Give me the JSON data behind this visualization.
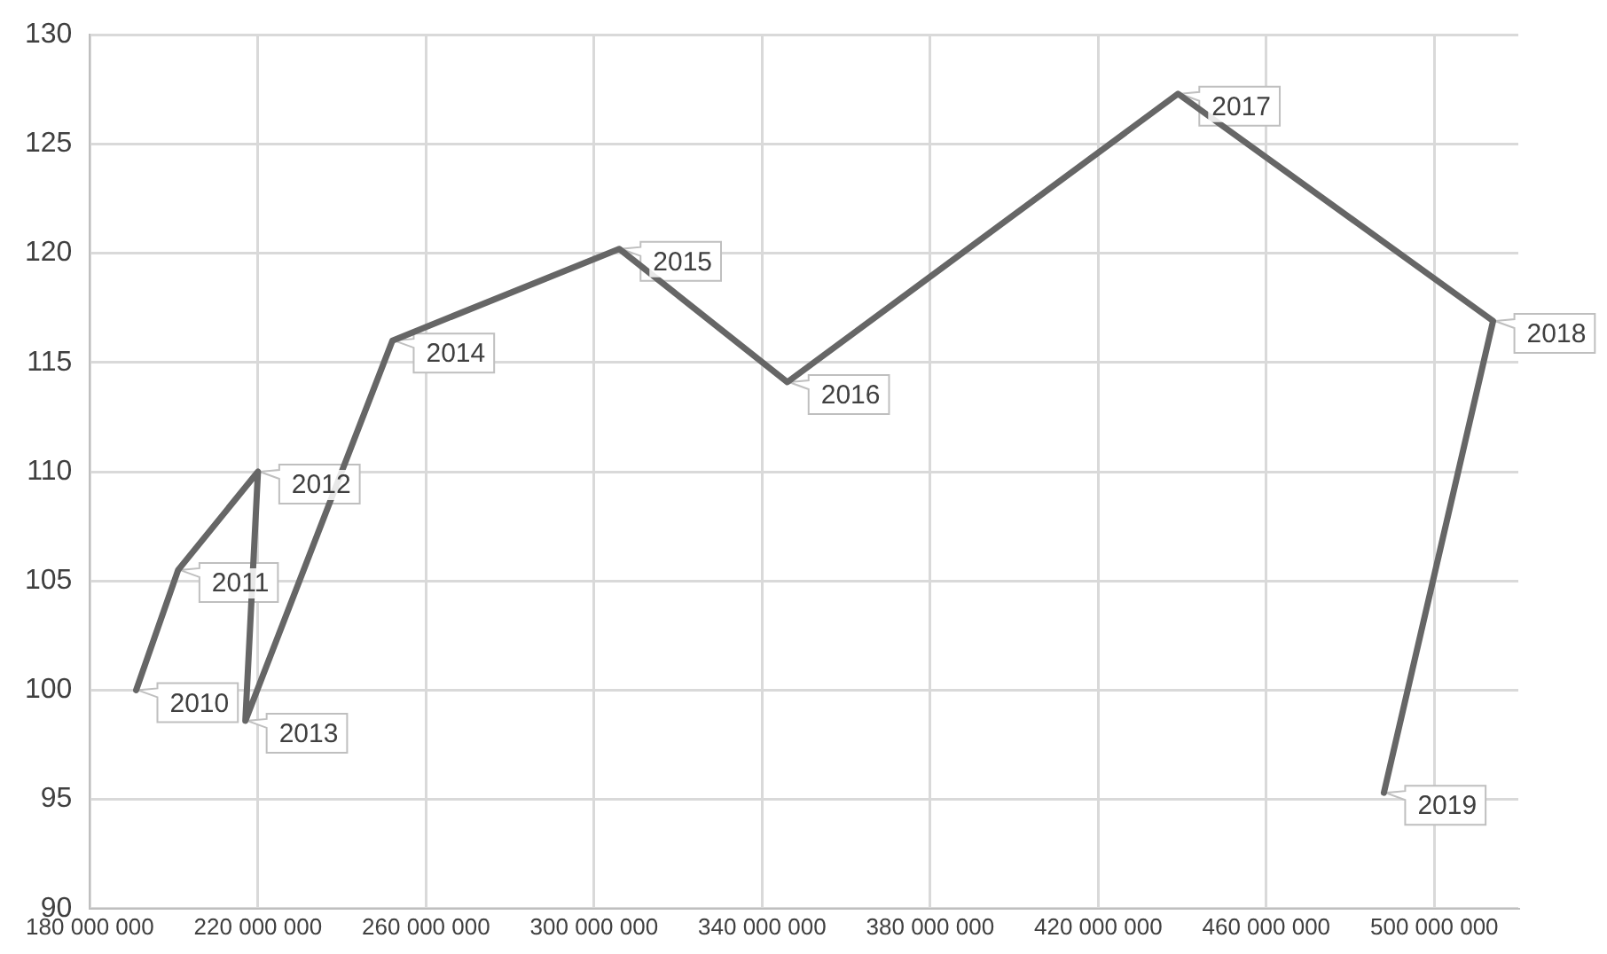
{
  "chart_data": {
    "type": "line",
    "marker": "none",
    "grid": true,
    "legend": false,
    "line_style": "solid",
    "xlim": [
      180000000,
      520000000
    ],
    "xticks": [
      {
        "value": 180000000,
        "label": "180 000 000"
      },
      {
        "value": 220000000,
        "label": "220 000 000"
      },
      {
        "value": 260000000,
        "label": "260 000 000"
      },
      {
        "value": 300000000,
        "label": "300 000 000"
      },
      {
        "value": 340000000,
        "label": "340 000 000"
      },
      {
        "value": 380000000,
        "label": "380 000 000"
      },
      {
        "value": 420000000,
        "label": "420 000 000"
      },
      {
        "value": 460000000,
        "label": "460 000 000"
      },
      {
        "value": 500000000,
        "label": "500 000 000"
      }
    ],
    "ylim": [
      90,
      130
    ],
    "yticks": [
      90,
      95,
      100,
      105,
      110,
      115,
      120,
      125,
      130
    ],
    "series": [
      {
        "color": "#666666",
        "x": [
          191000000,
          201000000,
          220000000,
          217000000,
          252000000,
          306000000,
          346000000,
          439000000,
          514000000,
          488000000
        ],
        "values": [
          100,
          105.5,
          110,
          98.6,
          116,
          120.2,
          114.1,
          127.3,
          116.9,
          95.3
        ]
      }
    ],
    "annotations": [
      {
        "text": "2010",
        "x": 191000000,
        "y": 100
      },
      {
        "text": "2011",
        "x": 201000000,
        "y": 105.5
      },
      {
        "text": "2012",
        "x": 220000000,
        "y": 110
      },
      {
        "text": "2013",
        "x": 217000000,
        "y": 98.6
      },
      {
        "text": "2014",
        "x": 252000000,
        "y": 116
      },
      {
        "text": "2015",
        "x": 306000000,
        "y": 120.2
      },
      {
        "text": "2016",
        "x": 346000000,
        "y": 114.1
      },
      {
        "text": "2017",
        "x": 439000000,
        "y": 127.3
      },
      {
        "text": "2018",
        "x": 514000000,
        "y": 116.9
      },
      {
        "text": "2019",
        "x": 488000000,
        "y": 95.3
      }
    ]
  }
}
